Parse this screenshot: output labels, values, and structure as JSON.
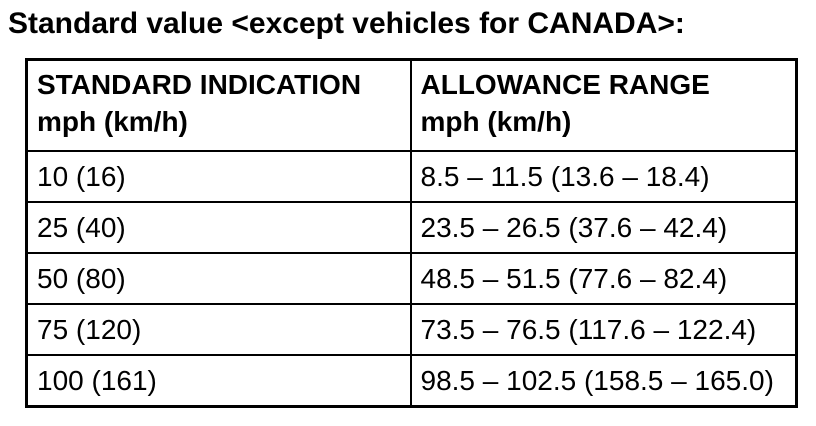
{
  "title": "Standard value <except vehicles for CANADA>:",
  "table": {
    "columns": [
      {
        "line1": "STANDARD INDICATION",
        "line2": "mph (km/h)"
      },
      {
        "line1": "ALLOWANCE RANGE",
        "line2": "mph (km/h)"
      }
    ],
    "rows": [
      {
        "standard": "10 (16)",
        "allowance": "8.5 – 11.5 (13.6 – 18.4)"
      },
      {
        "standard": "25 (40)",
        "allowance": "23.5 – 26.5 (37.6 – 42.4)"
      },
      {
        "standard": "50 (80)",
        "allowance": "48.5 – 51.5 (77.6 – 82.4)"
      },
      {
        "standard": "75 (120)",
        "allowance": "73.5 – 76.5 (117.6 – 122.4)"
      },
      {
        "standard": "100 (161)",
        "allowance": "98.5 – 102.5 (158.5 – 165.0)"
      }
    ]
  }
}
